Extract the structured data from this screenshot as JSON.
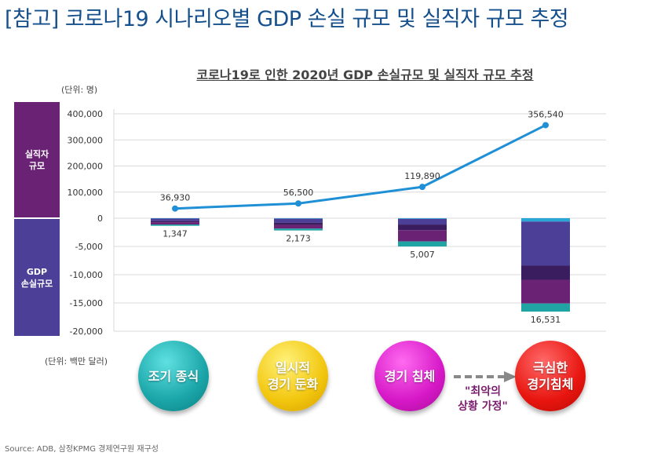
{
  "page": {
    "title": "[참고] 코로나19 시나리오별 GDP 손실 규모 및 실직자 규모 추정",
    "source": "Source: ADB, 삼정KPMG 경제연구원 재구성"
  },
  "side_bands": {
    "jobs": "실직자\n규모",
    "gdp": "GDP\n손실규모"
  },
  "scenarios": {
    "early_end": "조기 종식",
    "temporary_slowdown": "일시적\n경기 둔화",
    "recession": "경기 침체",
    "severe_recession": "극심한\n경기침체",
    "worst_case": "\"최악의\n상황 가정\""
  },
  "colors": {
    "line": "#1f8fd6",
    "seg_top": "#2aa6d6",
    "seg_1": "#4b3f98",
    "seg_2": "#3a1d5e",
    "seg_3": "#6a2374",
    "seg_bottom": "#1fa3a3"
  },
  "chart_data": {
    "type": "bar+line",
    "title": "코로나19로 인한 2020년 GDP 손실규모 및 실직자 규모 추정",
    "unit_top": "(단위: 명)",
    "unit_bottom": "(단위: 백만 달러)",
    "scenarios": [
      "조기 종식",
      "일시적 경기 둔화",
      "경기 침체",
      "극심한 경기침체"
    ],
    "jobs_axis": {
      "ticks": [
        0,
        100000,
        200000,
        300000,
        400000
      ],
      "tick_labels": [
        "0",
        "100,000",
        "200,000",
        "300,000",
        "400,000"
      ],
      "range": [
        0,
        400000
      ]
    },
    "gdp_axis": {
      "ticks": [
        -5000,
        -10000,
        -15000,
        -20000
      ],
      "tick_labels": [
        "-5,000",
        "-10,000",
        "-15,000",
        "-20,000"
      ],
      "range": [
        -20000,
        0
      ]
    },
    "job_losses": [
      36930,
      56500,
      119890,
      356540
    ],
    "job_loss_labels": [
      "36,930",
      "56,500",
      "119,890",
      "356,540"
    ],
    "gdp_loss_totals": [
      1347,
      2173,
      5007,
      16531
    ],
    "gdp_loss_labels": [
      "1,347",
      "2,173",
      "5,007",
      "16,531"
    ],
    "gdp_loss_segments": [
      [
        60,
        450,
        200,
        400,
        237
      ],
      [
        90,
        700,
        400,
        650,
        333
      ],
      [
        120,
        1000,
        1000,
        2000,
        887
      ],
      [
        600,
        7800,
        2500,
        4200,
        1431
      ]
    ]
  }
}
